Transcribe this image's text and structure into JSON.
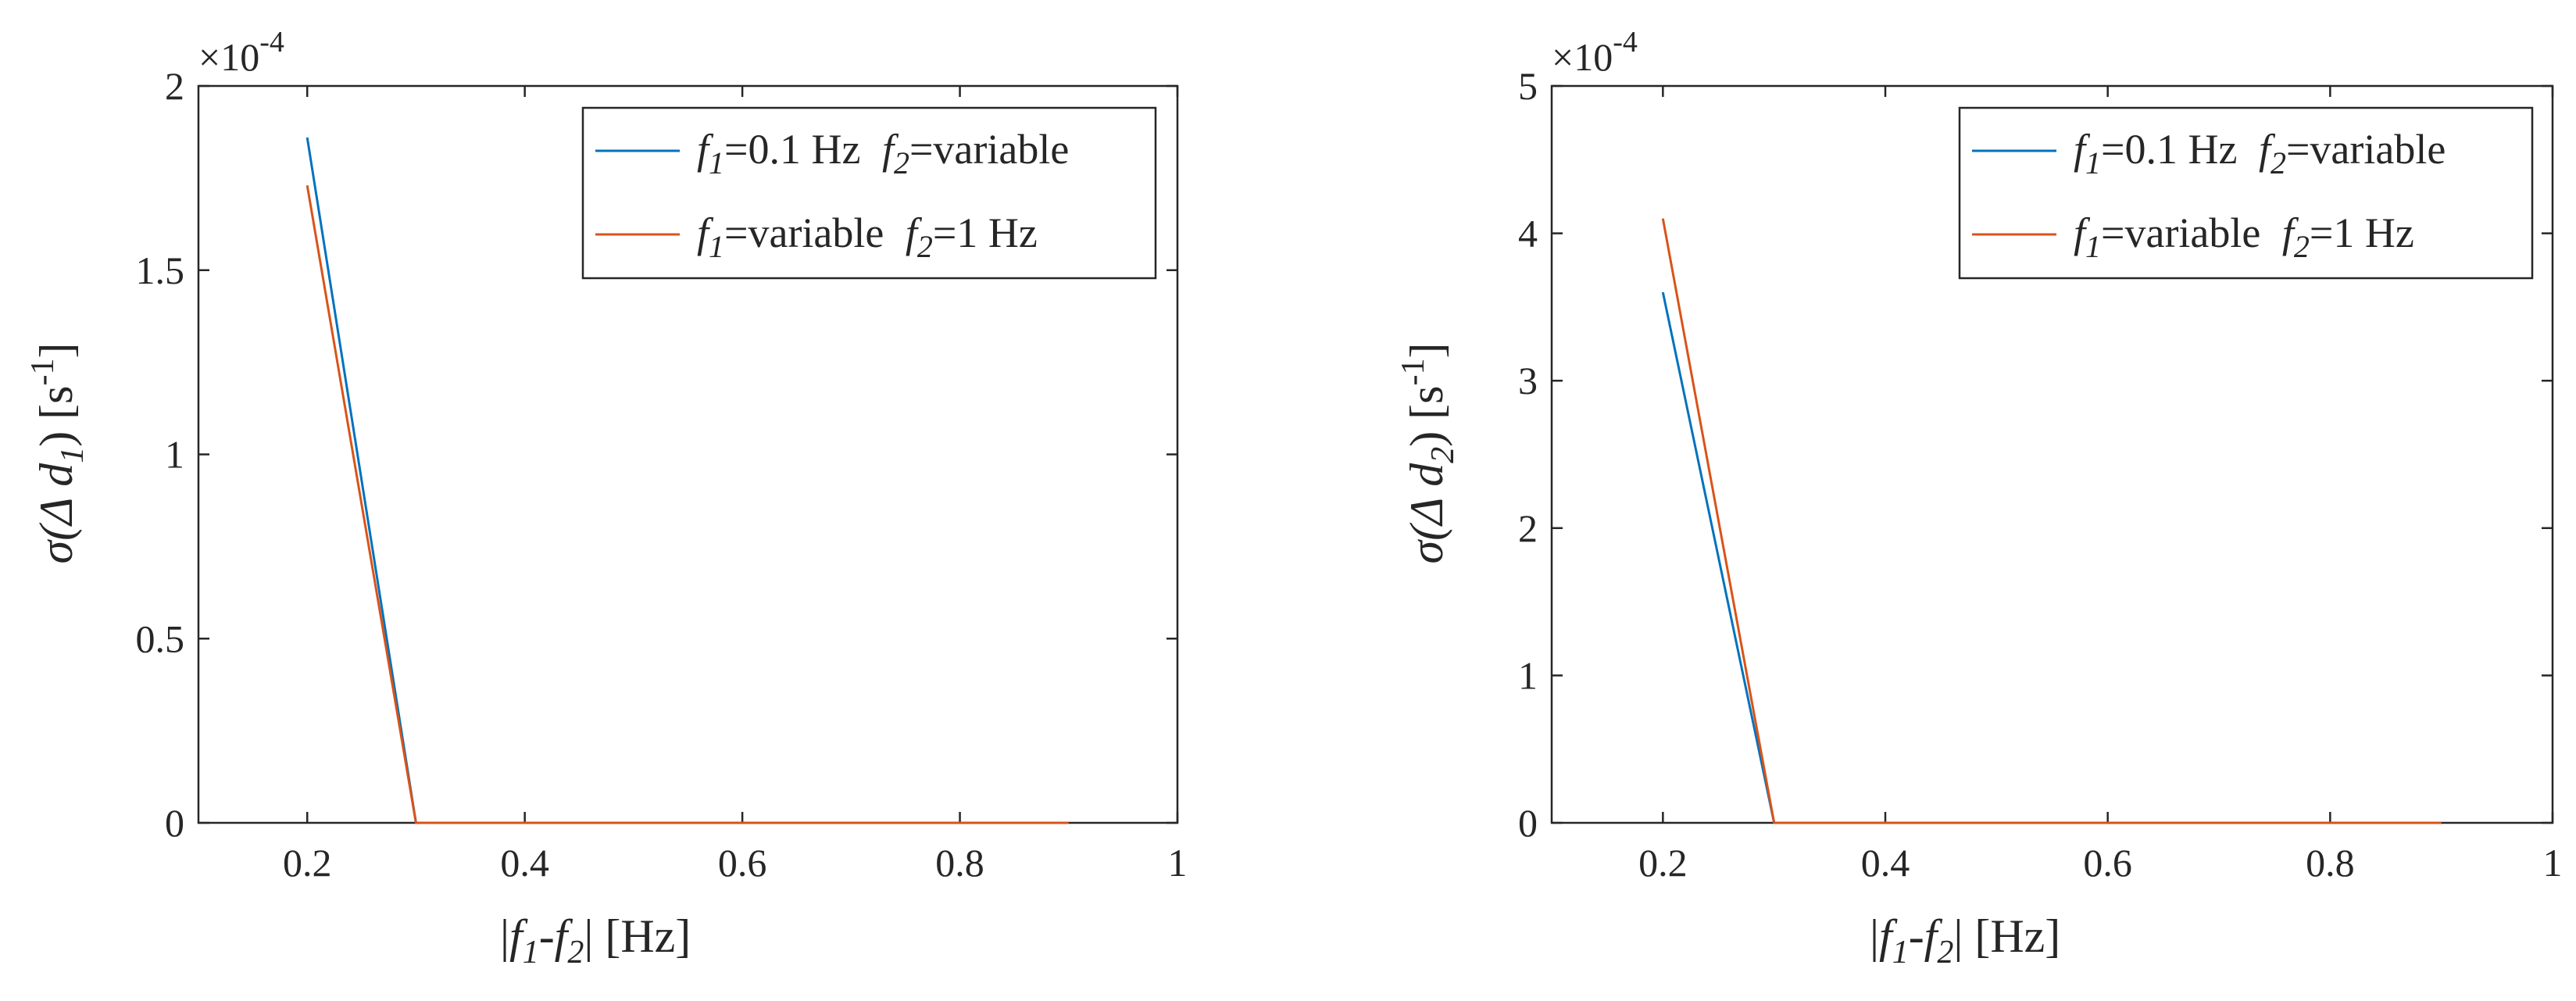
{
  "chart_data": [
    {
      "type": "line",
      "xlabel": "|f1-f2| [Hz]",
      "ylabel": "σ(Δ d1) [s-1]",
      "xlim": [
        0.1,
        1
      ],
      "ylim": [
        0,
        2
      ],
      "y_multiplier": "×10^-4",
      "x_ticks": [
        0.2,
        0.4,
        0.6,
        0.8,
        1
      ],
      "y_ticks": [
        0,
        0.5,
        1,
        1.5,
        2
      ],
      "x_tick_labels": [
        "0.2",
        "0.4",
        "0.6",
        "0.8",
        "1"
      ],
      "y_tick_labels": [
        "0",
        "0.5",
        "1",
        "1.5",
        "2"
      ],
      "legend_location": "top-right",
      "series": [
        {
          "name": "f1=0.1 Hz  f2=variable",
          "color": "#0072BD",
          "x": [
            0.2,
            0.3,
            0.4,
            0.5,
            0.6,
            0.7,
            0.8,
            0.9
          ],
          "values": [
            1.86,
            0,
            0,
            0,
            0,
            0,
            0,
            0
          ]
        },
        {
          "name": "f1=variable  f2=1 Hz",
          "color": "#D95319",
          "x": [
            0.2,
            0.3,
            0.4,
            0.5,
            0.6,
            0.7,
            0.8,
            0.9
          ],
          "values": [
            1.73,
            0,
            0,
            0,
            0,
            0,
            0,
            0
          ]
        }
      ]
    },
    {
      "type": "line",
      "xlabel": "|f1-f2| [Hz]",
      "ylabel": "σ(Δ d2) [s-1]",
      "xlim": [
        0.1,
        1
      ],
      "ylim": [
        0,
        5
      ],
      "y_multiplier": "×10^-4",
      "x_ticks": [
        0.2,
        0.4,
        0.6,
        0.8,
        1
      ],
      "y_ticks": [
        0,
        1,
        2,
        3,
        4,
        5
      ],
      "x_tick_labels": [
        "0.2",
        "0.4",
        "0.6",
        "0.8",
        "1"
      ],
      "y_tick_labels": [
        "0",
        "1",
        "2",
        "3",
        "4",
        "5"
      ],
      "legend_location": "top-right",
      "series": [
        {
          "name": "f1=0.1 Hz  f2=variable",
          "color": "#0072BD",
          "x": [
            0.2,
            0.3,
            0.4,
            0.5,
            0.6,
            0.7,
            0.8,
            0.9
          ],
          "values": [
            3.6,
            0,
            0,
            0,
            0,
            0,
            0,
            0
          ]
        },
        {
          "name": "f1=variable  f2=1 Hz",
          "color": "#D95319",
          "x": [
            0.2,
            0.3,
            0.4,
            0.5,
            0.6,
            0.7,
            0.8,
            0.9
          ],
          "values": [
            4.1,
            0,
            0,
            0,
            0,
            0,
            0,
            0
          ]
        }
      ]
    }
  ],
  "labels": {
    "multiplier_base": "×10",
    "multiplier_exp": "-4",
    "sigma_prefix": "σ(Δ ",
    "sigma_var": "d",
    "sub_1": "1",
    "sub_2": "2",
    "sigma_suffix": ") [s",
    "unit_exp": "-1",
    "unit_close": "]",
    "x_bar_open": "|",
    "x_f": "f",
    "x_minus": "-",
    "x_bar_close": "| [Hz]",
    "legend_a_mid": "=0.1 Hz ",
    "legend_a_end": "=variable",
    "legend_b_mid": "=variable ",
    "legend_b_end": "=1 Hz"
  }
}
